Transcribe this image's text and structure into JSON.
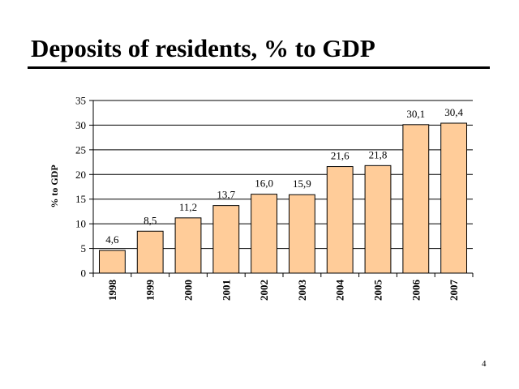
{
  "title": "Deposits of residents, % to GDP",
  "page_number": "4",
  "chart_data": {
    "type": "bar",
    "title": "",
    "xlabel": "",
    "ylabel": "% to GDP",
    "categories": [
      "1998",
      "1999",
      "2000",
      "2001",
      "2002",
      "2003",
      "2004",
      "2005",
      "2006",
      "2007"
    ],
    "values": [
      4.6,
      8.5,
      11.2,
      13.7,
      16.0,
      15.9,
      21.6,
      21.8,
      30.1,
      30.4
    ],
    "data_labels": [
      "4,6",
      "8,5",
      "11,2",
      "13,7",
      "16,0",
      "15,9",
      "21,6",
      "21,8",
      "30,1",
      "30,4"
    ],
    "ylim": [
      0,
      35
    ],
    "yticks": [
      "0",
      "5",
      "10",
      "15",
      "20",
      "25",
      "30",
      "35"
    ],
    "grid": true,
    "bar_color": "#ffcc99",
    "bar_edge_color": "#000000"
  }
}
